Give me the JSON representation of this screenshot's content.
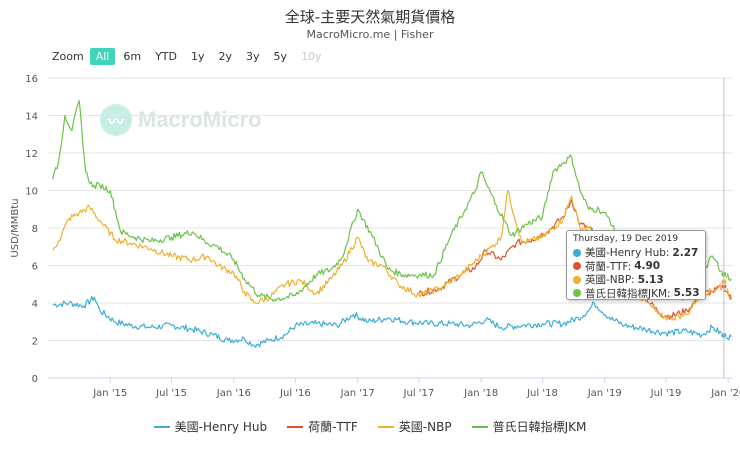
{
  "title": "全球-主要天然氣期貨價格",
  "subtitle": "MacroMicro.me | Fisher",
  "zoom": {
    "label": "Zoom",
    "buttons": [
      "All",
      "6m",
      "YTD",
      "1y",
      "2y",
      "3y",
      "5y",
      "10y"
    ],
    "active": "All",
    "disabled": [
      "10y"
    ]
  },
  "watermark": "MacroMicro",
  "colors": {
    "henry_hub": "#3daed3",
    "ttf": "#e0532a",
    "nbp": "#f0b02e",
    "jkm": "#6cc24a"
  },
  "tooltip": {
    "date": "Thursday, 19 Dec 2019",
    "rows": [
      {
        "label": "美國-Henry Hub:",
        "value": "2.27"
      },
      {
        "label": "荷蘭-TTF:",
        "value": "4.90"
      },
      {
        "label": "英國-NBP:",
        "value": "5.13"
      },
      {
        "label": "普氏日韓指標JKM:",
        "value": "5.53"
      }
    ]
  },
  "legend": [
    "美國-Henry Hub",
    "荷蘭-TTF",
    "英國-NBP",
    "普氏日韓指標JKM"
  ],
  "chart_data": {
    "type": "line",
    "ylabel": "USD/MMBtu",
    "ylim": [
      0,
      16
    ],
    "yticks": [
      0,
      2,
      4,
      6,
      8,
      10,
      12,
      14,
      16
    ],
    "xlim": [
      "2014-07-01",
      "2020-01-15"
    ],
    "xticks": [
      "Jan '15",
      "Jul '15",
      "Jan '16",
      "Jul '16",
      "Jan '17",
      "Jul '17",
      "Jan '18",
      "Jul '18",
      "Jan '19",
      "Jul '19",
      "Jan '20"
    ],
    "xtick_dates": [
      "2015-01-01",
      "2015-07-01",
      "2016-01-01",
      "2016-07-01",
      "2017-01-01",
      "2017-07-01",
      "2018-01-01",
      "2018-07-01",
      "2019-01-01",
      "2019-07-01",
      "2020-01-01"
    ],
    "crosshair_date": "2019-12-19",
    "series": [
      {
        "name": "美國-Henry Hub",
        "color": "#3daed3",
        "x": [
          "2014-07-15",
          "2014-09-01",
          "2014-10-15",
          "2014-11-15",
          "2014-12-01",
          "2015-01-15",
          "2015-03-01",
          "2015-05-01",
          "2015-07-01",
          "2015-09-01",
          "2015-11-01",
          "2015-12-15",
          "2016-02-01",
          "2016-03-01",
          "2016-04-15",
          "2016-06-01",
          "2016-07-01",
          "2016-09-01",
          "2016-11-01",
          "2016-12-20",
          "2017-02-01",
          "2017-04-01",
          "2017-06-01",
          "2017-08-01",
          "2017-10-01",
          "2017-12-01",
          "2018-01-15",
          "2018-03-01",
          "2018-05-01",
          "2018-07-01",
          "2018-09-01",
          "2018-10-15",
          "2018-11-15",
          "2018-12-01",
          "2019-01-15",
          "2019-03-01",
          "2019-05-01",
          "2019-07-01",
          "2019-09-01",
          "2019-10-15",
          "2019-11-15",
          "2019-12-19",
          "2020-01-10"
        ],
        "y": [
          3.9,
          4.0,
          3.85,
          4.3,
          3.6,
          3.0,
          2.8,
          2.7,
          2.8,
          2.6,
          2.3,
          2.0,
          2.1,
          1.75,
          2.0,
          2.3,
          2.8,
          2.9,
          2.8,
          3.4,
          3.0,
          3.2,
          3.0,
          2.9,
          2.9,
          2.8,
          3.1,
          2.7,
          2.8,
          2.9,
          2.9,
          3.2,
          3.6,
          4.0,
          3.2,
          2.8,
          2.6,
          2.4,
          2.5,
          2.3,
          2.7,
          2.27,
          2.2
        ]
      },
      {
        "name": "荷蘭-TTF",
        "color": "#e0532a",
        "x": [
          "2017-07-01",
          "2017-09-01",
          "2017-11-01",
          "2017-12-15",
          "2018-01-15",
          "2018-03-01",
          "2018-04-15",
          "2018-06-01",
          "2018-07-15",
          "2018-09-01",
          "2018-09-25",
          "2018-10-20",
          "2018-11-15",
          "2018-12-15",
          "2019-01-15",
          "2019-03-01",
          "2019-05-01",
          "2019-06-15",
          "2019-07-15",
          "2019-09-01",
          "2019-10-15",
          "2019-11-15",
          "2019-12-19",
          "2020-01-10"
        ],
        "y": [
          4.5,
          4.8,
          5.5,
          5.9,
          6.8,
          6.3,
          7.2,
          7.4,
          7.8,
          8.6,
          9.5,
          8.2,
          8.0,
          7.5,
          6.4,
          5.2,
          4.3,
          3.4,
          3.3,
          3.6,
          4.5,
          4.6,
          4.9,
          4.2
        ]
      },
      {
        "name": "英國-NBP",
        "color": "#f0b02e",
        "x": [
          "2014-07-15",
          "2014-08-01",
          "2014-09-01",
          "2014-10-01",
          "2014-11-01",
          "2014-12-01",
          "2015-01-15",
          "2015-03-01",
          "2015-05-01",
          "2015-07-01",
          "2015-09-01",
          "2015-10-15",
          "2015-11-15",
          "2016-01-01",
          "2016-02-01",
          "2016-03-01",
          "2016-04-15",
          "2016-06-01",
          "2016-07-15",
          "2016-09-01",
          "2016-10-15",
          "2016-11-15",
          "2017-01-01",
          "2017-02-01",
          "2017-03-15",
          "2017-05-01",
          "2017-07-01",
          "2017-09-01",
          "2017-11-01",
          "2018-01-01",
          "2018-02-01",
          "2018-03-01",
          "2018-03-20",
          "2018-05-01",
          "2018-07-01",
          "2018-09-01",
          "2018-09-25",
          "2018-10-20",
          "2018-11-15",
          "2018-12-15",
          "2019-01-15",
          "2019-03-01",
          "2019-05-01",
          "2019-06-15",
          "2019-07-15",
          "2019-09-01",
          "2019-10-15",
          "2019-11-15",
          "2019-12-19",
          "2020-01-10"
        ],
        "y": [
          6.8,
          7.3,
          8.5,
          8.8,
          9.1,
          8.4,
          7.4,
          7.2,
          6.9,
          6.5,
          6.3,
          6.5,
          6.0,
          5.6,
          4.6,
          4.0,
          4.3,
          5.0,
          5.2,
          4.5,
          5.3,
          6.0,
          7.5,
          6.2,
          6.0,
          5.0,
          4.4,
          4.8,
          5.5,
          6.5,
          7.0,
          7.5,
          10.0,
          7.2,
          7.5,
          8.5,
          9.7,
          8.0,
          8.0,
          7.5,
          6.6,
          5.0,
          4.1,
          3.3,
          3.2,
          3.4,
          4.6,
          4.6,
          5.13,
          4.2
        ]
      },
      {
        "name": "普氏日韓指標JKM",
        "color": "#6cc24a",
        "x": [
          "2014-07-15",
          "2014-08-01",
          "2014-08-20",
          "2014-09-10",
          "2014-10-01",
          "2014-10-20",
          "2014-11-10",
          "2014-12-01",
          "2015-01-01",
          "2015-02-01",
          "2015-03-15",
          "2015-05-01",
          "2015-07-01",
          "2015-09-01",
          "2015-10-15",
          "2015-11-15",
          "2016-01-01",
          "2016-02-01",
          "2016-03-15",
          "2016-05-01",
          "2016-07-01",
          "2016-09-01",
          "2016-10-15",
          "2016-11-15",
          "2017-01-01",
          "2017-02-15",
          "2017-04-01",
          "2017-05-15",
          "2017-07-01",
          "2017-08-15",
          "2017-10-01",
          "2017-11-15",
          "2017-12-15",
          "2018-01-01",
          "2018-01-20",
          "2018-02-15",
          "2018-04-01",
          "2018-05-15",
          "2018-07-01",
          "2018-08-01",
          "2018-09-01",
          "2018-09-25",
          "2018-10-20",
          "2018-11-15",
          "2018-12-15",
          "2019-01-15",
          "2019-03-01",
          "2019-05-01",
          "2019-06-15",
          "2019-07-15",
          "2019-09-01",
          "2019-10-15",
          "2019-11-15",
          "2019-12-19",
          "2020-01-10"
        ],
        "y": [
          10.6,
          11.5,
          14.0,
          13.2,
          14.8,
          11.0,
          10.2,
          10.3,
          10.0,
          7.8,
          7.5,
          7.3,
          7.5,
          7.8,
          7.2,
          7.0,
          6.3,
          5.3,
          4.4,
          4.2,
          4.4,
          5.5,
          5.8,
          6.4,
          9.0,
          7.5,
          5.8,
          5.5,
          5.5,
          5.5,
          7.5,
          9.0,
          10.0,
          11.0,
          10.2,
          9.2,
          7.6,
          8.2,
          8.6,
          11.0,
          11.5,
          11.8,
          10.0,
          9.0,
          9.0,
          8.5,
          6.5,
          5.2,
          4.8,
          4.4,
          4.3,
          5.5,
          6.5,
          5.53,
          5.3
        ]
      }
    ]
  }
}
